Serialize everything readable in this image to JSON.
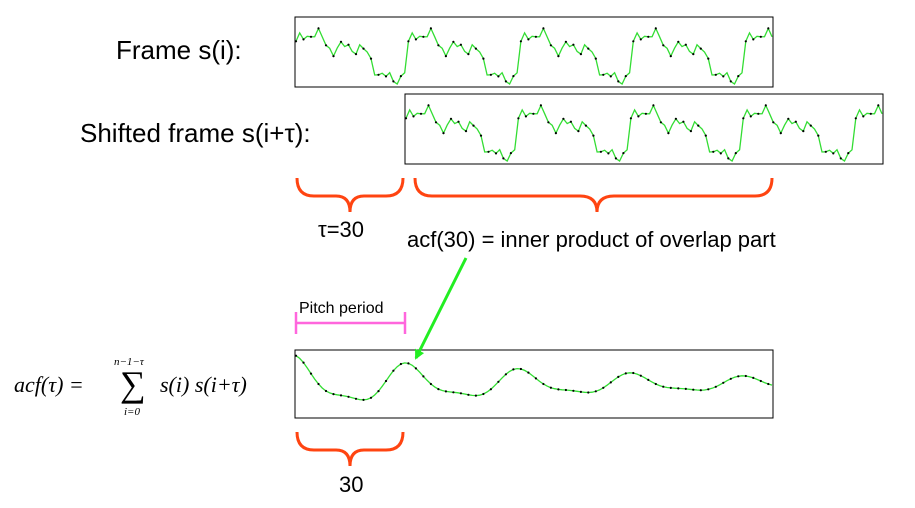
{
  "labels": {
    "frame": "Frame s(i):",
    "shifted_frame": "Shifted frame s(i+τ):",
    "tau_value": "τ=30",
    "overlap_note": "acf(30) = inner product of overlap part",
    "pitch_period": "Pitch period",
    "lag_value": "30"
  },
  "formula": {
    "lhs": "acf(τ) =",
    "upper_limit": "n−1−τ",
    "lower_limit": "i=0",
    "sigma": "∑",
    "summand": "s(i) s(i+τ)"
  },
  "colors": {
    "signal": "#33dd33",
    "marker": "#000000",
    "brace": "#ff4411",
    "pitch_bracket": "#ff66dd",
    "arrow": "#22ee22",
    "frame_border": "#000000"
  }
}
